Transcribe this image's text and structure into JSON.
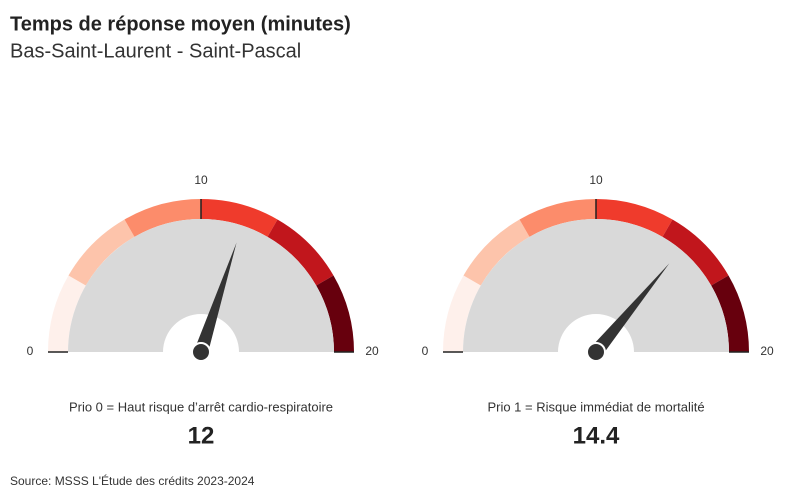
{
  "title": "Temps de réponse moyen (minutes)",
  "subtitle": "Bas-Saint-Laurent - Saint-Pascal",
  "source": "Source: MSSS L'Étude des crédits 2023-2024",
  "chart_data": [
    {
      "type": "gauge",
      "label": "Prio 0 = Haut risque d’arrêt cardio-respiratoire",
      "value": 12,
      "range": [
        0,
        20
      ],
      "ticks": [
        0,
        10,
        20
      ],
      "band_colors": [
        "#fef0eb",
        "#fdc4ab",
        "#fc8c6b",
        "#ef3b2c",
        "#c1161c",
        "#67000d"
      ],
      "face_color": "#d9d9d9",
      "needle_color": "#333333"
    },
    {
      "type": "gauge",
      "label": "Prio 1 = Risque immédiat de mortalité",
      "value": 14.4,
      "range": [
        0,
        20
      ],
      "ticks": [
        0,
        10,
        20
      ],
      "band_colors": [
        "#fef0eb",
        "#fdc4ab",
        "#fc8c6b",
        "#ef3b2c",
        "#c1161c",
        "#67000d"
      ],
      "face_color": "#d9d9d9",
      "needle_color": "#333333"
    }
  ]
}
